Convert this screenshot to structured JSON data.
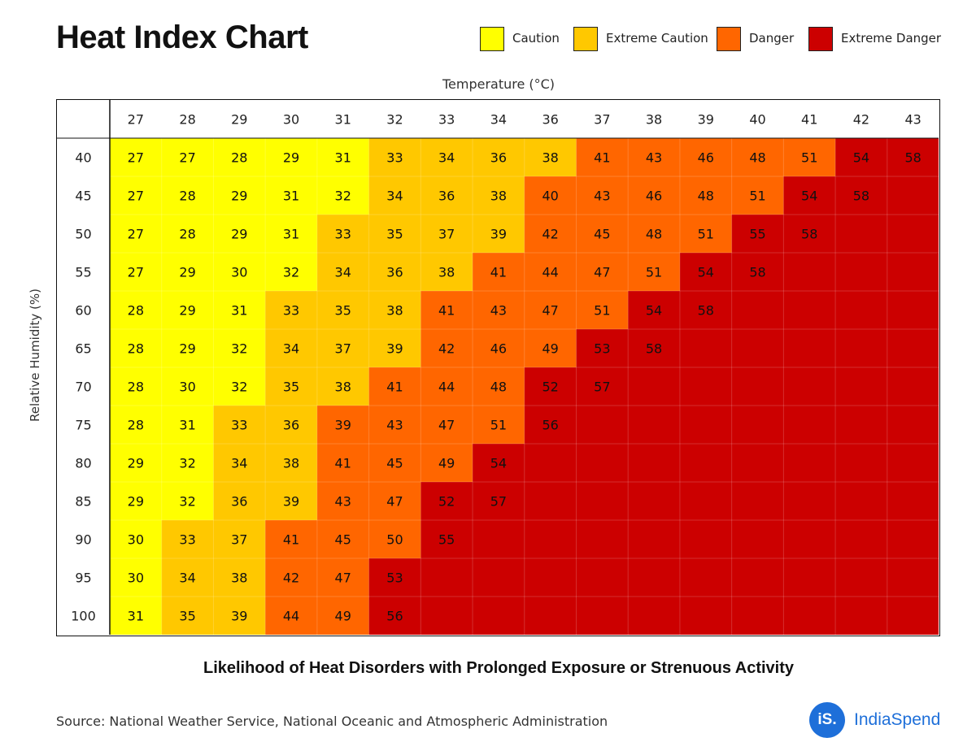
{
  "title": "Heat Index Chart",
  "subtitle": "Likelihood of Heat Disorders with Prolonged Exposure or Strenuous Activity",
  "source": "Source: National Weather Service, National Oceanic and Atmospheric Administration",
  "brand": {
    "logo_text": "iS.",
    "name": "IndiaSpend",
    "color": "#1e6fd9"
  },
  "legend": [
    {
      "label": "Caution",
      "color": "#ffff00"
    },
    {
      "label": "Extreme Caution",
      "color": "#ffc800"
    },
    {
      "label": "Danger",
      "color": "#ff6600"
    },
    {
      "label": "Extreme Danger",
      "color": "#cc0000"
    }
  ],
  "chart_data": {
    "type": "heatmap",
    "title": "Heat Index Chart",
    "xlabel": "Temperature (°C)",
    "ylabel": "Relative Humidity (%)",
    "x": [
      27,
      28,
      29,
      30,
      31,
      32,
      33,
      34,
      36,
      37,
      38,
      39,
      40,
      41,
      42,
      43
    ],
    "y": [
      40,
      45,
      50,
      55,
      60,
      65,
      70,
      75,
      80,
      85,
      90,
      95,
      100
    ],
    "categories_legend": [
      "Caution",
      "Extreme Caution",
      "Danger",
      "Extreme Danger"
    ],
    "values": [
      [
        27,
        27,
        28,
        29,
        31,
        33,
        34,
        36,
        38,
        41,
        43,
        46,
        48,
        51,
        54,
        58
      ],
      [
        27,
        28,
        29,
        31,
        32,
        34,
        36,
        38,
        40,
        43,
        46,
        48,
        51,
        54,
        58,
        null
      ],
      [
        27,
        28,
        29,
        31,
        33,
        35,
        37,
        39,
        42,
        45,
        48,
        51,
        55,
        58,
        null,
        null
      ],
      [
        27,
        29,
        30,
        32,
        34,
        36,
        38,
        41,
        44,
        47,
        51,
        54,
        58,
        null,
        null,
        null
      ],
      [
        28,
        29,
        31,
        33,
        35,
        38,
        41,
        43,
        47,
        51,
        54,
        58,
        null,
        null,
        null,
        null
      ],
      [
        28,
        29,
        32,
        34,
        37,
        39,
        42,
        46,
        49,
        53,
        58,
        null,
        null,
        null,
        null,
        null
      ],
      [
        28,
        30,
        32,
        35,
        38,
        41,
        44,
        48,
        52,
        57,
        null,
        null,
        null,
        null,
        null,
        null
      ],
      [
        28,
        31,
        33,
        36,
        39,
        43,
        47,
        51,
        56,
        null,
        null,
        null,
        null,
        null,
        null,
        null
      ],
      [
        29,
        32,
        34,
        38,
        41,
        45,
        49,
        54,
        null,
        null,
        null,
        null,
        null,
        null,
        null,
        null
      ],
      [
        29,
        32,
        36,
        39,
        43,
        47,
        52,
        57,
        null,
        null,
        null,
        null,
        null,
        null,
        null,
        null
      ],
      [
        30,
        33,
        37,
        41,
        45,
        50,
        55,
        null,
        null,
        null,
        null,
        null,
        null,
        null,
        null,
        null
      ],
      [
        30,
        34,
        38,
        42,
        47,
        53,
        null,
        null,
        null,
        null,
        null,
        null,
        null,
        null,
        null,
        null
      ],
      [
        31,
        35,
        39,
        44,
        49,
        56,
        null,
        null,
        null,
        null,
        null,
        null,
        null,
        null,
        null,
        null
      ]
    ],
    "category_grid": [
      [
        0,
        0,
        0,
        0,
        0,
        1,
        1,
        1,
        1,
        2,
        2,
        2,
        2,
        2,
        3,
        3
      ],
      [
        0,
        0,
        0,
        0,
        0,
        1,
        1,
        1,
        2,
        2,
        2,
        2,
        2,
        3,
        3,
        3
      ],
      [
        0,
        0,
        0,
        0,
        1,
        1,
        1,
        1,
        2,
        2,
        2,
        2,
        3,
        3,
        3,
        3
      ],
      [
        0,
        0,
        0,
        0,
        1,
        1,
        1,
        2,
        2,
        2,
        2,
        3,
        3,
        3,
        3,
        3
      ],
      [
        0,
        0,
        0,
        1,
        1,
        1,
        2,
        2,
        2,
        2,
        3,
        3,
        3,
        3,
        3,
        3
      ],
      [
        0,
        0,
        0,
        1,
        1,
        1,
        2,
        2,
        2,
        3,
        3,
        3,
        3,
        3,
        3,
        3
      ],
      [
        0,
        0,
        0,
        1,
        1,
        2,
        2,
        2,
        3,
        3,
        3,
        3,
        3,
        3,
        3,
        3
      ],
      [
        0,
        0,
        1,
        1,
        2,
        2,
        2,
        2,
        3,
        3,
        3,
        3,
        3,
        3,
        3,
        3
      ],
      [
        0,
        0,
        1,
        1,
        2,
        2,
        2,
        3,
        3,
        3,
        3,
        3,
        3,
        3,
        3,
        3
      ],
      [
        0,
        0,
        1,
        1,
        2,
        2,
        3,
        3,
        3,
        3,
        3,
        3,
        3,
        3,
        3,
        3
      ],
      [
        0,
        1,
        1,
        2,
        2,
        2,
        3,
        3,
        3,
        3,
        3,
        3,
        3,
        3,
        3,
        3
      ],
      [
        0,
        1,
        1,
        2,
        2,
        3,
        3,
        3,
        3,
        3,
        3,
        3,
        3,
        3,
        3,
        3
      ],
      [
        0,
        1,
        1,
        2,
        2,
        3,
        3,
        3,
        3,
        3,
        3,
        3,
        3,
        3,
        3,
        3
      ]
    ],
    "colors": [
      "#ffff00",
      "#ffc800",
      "#ff6600",
      "#cc0000"
    ],
    "grid": true,
    "legend_position": "top-right"
  }
}
